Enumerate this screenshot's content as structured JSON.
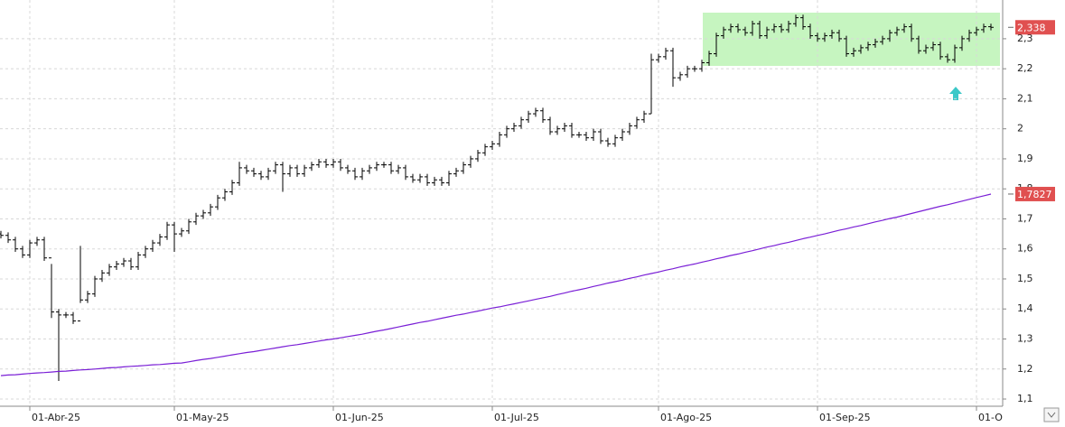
{
  "chart_data": {
    "type": "ohlc",
    "categories": [
      null,
      null,
      null,
      null,
      "01-Abr-25",
      null,
      null,
      null,
      null,
      null,
      null,
      null,
      null,
      null,
      null,
      null,
      null,
      null,
      null,
      null,
      null,
      null,
      null,
      null,
      "01-May-25",
      null,
      null,
      null,
      null,
      null,
      null,
      null,
      null,
      null,
      null,
      null,
      null,
      null,
      null,
      null,
      null,
      null,
      null,
      null,
      null,
      null,
      "01-Jun-25",
      null,
      null,
      null,
      null,
      null,
      null,
      null,
      null,
      null,
      null,
      null,
      null,
      null,
      null,
      null,
      null,
      null,
      null,
      null,
      null,
      null,
      "01-Jul-25",
      null,
      null,
      null,
      null,
      null,
      null,
      null,
      null,
      null,
      null,
      null,
      null,
      null,
      null,
      null,
      null,
      null,
      null,
      null,
      null,
      null,
      null,
      "01-Ago-25",
      null,
      null,
      null,
      null,
      null,
      null,
      null,
      null,
      null,
      null,
      null,
      null,
      null,
      null,
      null,
      null,
      null,
      null,
      null,
      null,
      null,
      "01-Sep-25",
      null,
      null,
      null,
      null,
      null,
      null,
      null,
      null,
      null,
      null,
      null,
      null,
      null,
      null,
      null,
      null,
      null,
      null,
      null,
      null,
      null,
      "01-O",
      null,
      null
    ],
    "ohlc": {
      "color": "#000000",
      "open": [
        1.65,
        1.645,
        1.63,
        1.6,
        1.58,
        1.62,
        1.63,
        1.57,
        1.39,
        1.38,
        1.38,
        1.36,
        1.43,
        1.45,
        1.5,
        1.52,
        1.54,
        1.55,
        1.56,
        1.54,
        1.58,
        1.6,
        1.62,
        1.64,
        1.68,
        1.65,
        1.66,
        1.69,
        1.71,
        1.72,
        1.74,
        1.77,
        1.79,
        1.82,
        1.87,
        1.86,
        1.85,
        1.84,
        1.86,
        1.88,
        1.85,
        1.87,
        1.85,
        1.87,
        1.88,
        1.89,
        1.88,
        1.89,
        1.87,
        1.86,
        1.84,
        1.86,
        1.87,
        1.88,
        1.88,
        1.86,
        1.87,
        1.84,
        1.83,
        1.84,
        1.82,
        1.83,
        1.82,
        1.85,
        1.86,
        1.88,
        1.9,
        1.92,
        1.94,
        1.95,
        1.98,
        2.0,
        2.01,
        2.03,
        2.05,
        2.06,
        2.03,
        1.99,
        2.0,
        2.01,
        1.98,
        1.98,
        1.97,
        1.99,
        1.96,
        1.95,
        1.97,
        1.99,
        2.01,
        2.03,
        2.05,
        2.23,
        2.24,
        2.26,
        2.17,
        2.18,
        2.2,
        2.2,
        2.22,
        2.25,
        2.31,
        2.33,
        2.34,
        2.33,
        2.32,
        2.35,
        2.31,
        2.33,
        2.34,
        2.33,
        2.35,
        2.37,
        2.34,
        2.31,
        2.3,
        2.31,
        2.32,
        2.3,
        2.25,
        2.26,
        2.27,
        2.28,
        2.29,
        2.3,
        2.32,
        2.33,
        2.34,
        2.3,
        2.26,
        2.27,
        2.28,
        2.24,
        2.23,
        2.27,
        2.3,
        2.32,
        2.33,
        2.34
      ],
      "high": [
        1.66,
        1.655,
        1.64,
        1.61,
        1.63,
        1.64,
        1.64,
        1.55,
        1.4,
        1.39,
        1.39,
        1.61,
        1.46,
        1.51,
        1.53,
        1.55,
        1.56,
        1.57,
        1.57,
        1.59,
        1.61,
        1.63,
        1.65,
        1.69,
        1.69,
        1.67,
        1.7,
        1.72,
        1.73,
        1.75,
        1.78,
        1.8,
        1.83,
        1.89,
        1.88,
        1.87,
        1.86,
        1.87,
        1.89,
        1.89,
        1.88,
        1.88,
        1.88,
        1.89,
        1.9,
        1.9,
        1.9,
        1.9,
        1.88,
        1.87,
        1.87,
        1.88,
        1.89,
        1.89,
        1.89,
        1.88,
        1.88,
        1.85,
        1.85,
        1.85,
        1.84,
        1.84,
        1.86,
        1.87,
        1.89,
        1.91,
        1.93,
        1.95,
        1.96,
        1.99,
        2.01,
        2.02,
        2.04,
        2.06,
        2.07,
        2.07,
        2.04,
        2.01,
        2.02,
        2.02,
        1.99,
        1.99,
        2.0,
        2.0,
        1.97,
        1.98,
        2.0,
        2.02,
        2.04,
        2.06,
        2.25,
        2.25,
        2.27,
        2.27,
        2.19,
        2.21,
        2.21,
        2.23,
        2.26,
        2.32,
        2.34,
        2.35,
        2.35,
        2.34,
        2.36,
        2.36,
        2.34,
        2.35,
        2.35,
        2.36,
        2.38,
        2.38,
        2.35,
        2.32,
        2.32,
        2.33,
        2.33,
        2.31,
        2.27,
        2.28,
        2.29,
        2.3,
        2.31,
        2.33,
        2.34,
        2.35,
        2.35,
        2.31,
        2.28,
        2.29,
        2.29,
        2.25,
        2.28,
        2.31,
        2.33,
        2.34,
        2.35,
        2.35
      ],
      "low": [
        1.635,
        1.62,
        1.59,
        1.57,
        1.57,
        1.61,
        1.56,
        1.37,
        1.16,
        1.37,
        1.35,
        1.42,
        1.42,
        1.44,
        1.49,
        1.51,
        1.53,
        1.54,
        1.53,
        1.53,
        1.57,
        1.59,
        1.61,
        1.63,
        1.59,
        1.64,
        1.65,
        1.68,
        1.7,
        1.71,
        1.73,
        1.76,
        1.78,
        1.81,
        1.85,
        1.84,
        1.83,
        1.83,
        1.85,
        1.79,
        1.84,
        1.84,
        1.84,
        1.86,
        1.87,
        1.87,
        1.87,
        1.86,
        1.85,
        1.83,
        1.83,
        1.85,
        1.86,
        1.87,
        1.85,
        1.85,
        1.83,
        1.82,
        1.82,
        1.81,
        1.81,
        1.81,
        1.81,
        1.84,
        1.85,
        1.87,
        1.89,
        1.91,
        1.93,
        1.94,
        1.97,
        1.99,
        2.0,
        2.02,
        2.04,
        2.02,
        1.98,
        1.98,
        1.99,
        1.97,
        1.97,
        1.96,
        1.96,
        1.95,
        1.94,
        1.94,
        1.96,
        1.98,
        2.0,
        2.02,
        2.05,
        2.22,
        2.23,
        2.14,
        2.16,
        2.17,
        2.19,
        2.19,
        2.21,
        2.24,
        2.3,
        2.32,
        2.32,
        2.31,
        2.31,
        2.3,
        2.3,
        2.32,
        2.32,
        2.32,
        2.34,
        2.33,
        2.3,
        2.29,
        2.29,
        2.3,
        2.29,
        2.24,
        2.24,
        2.25,
        2.26,
        2.27,
        2.28,
        2.29,
        2.31,
        2.32,
        2.29,
        2.25,
        2.25,
        2.26,
        2.23,
        2.22,
        2.22,
        2.26,
        2.29,
        2.31,
        2.32,
        2.328
      ],
      "close": [
        1.645,
        1.63,
        1.6,
        1.58,
        1.62,
        1.63,
        1.57,
        1.39,
        1.38,
        1.38,
        1.36,
        1.43,
        1.45,
        1.5,
        1.52,
        1.54,
        1.55,
        1.56,
        1.54,
        1.58,
        1.6,
        1.62,
        1.64,
        1.68,
        1.65,
        1.66,
        1.69,
        1.71,
        1.72,
        1.74,
        1.77,
        1.79,
        1.82,
        1.87,
        1.86,
        1.85,
        1.84,
        1.86,
        1.88,
        1.85,
        1.87,
        1.85,
        1.87,
        1.88,
        1.89,
        1.88,
        1.89,
        1.87,
        1.86,
        1.84,
        1.86,
        1.87,
        1.88,
        1.88,
        1.86,
        1.87,
        1.84,
        1.83,
        1.84,
        1.82,
        1.83,
        1.82,
        1.85,
        1.86,
        1.88,
        1.9,
        1.92,
        1.94,
        1.95,
        1.98,
        2.0,
        2.01,
        2.03,
        2.05,
        2.06,
        2.03,
        1.99,
        2.0,
        2.01,
        1.98,
        1.98,
        1.97,
        1.99,
        1.96,
        1.95,
        1.97,
        1.99,
        2.01,
        2.03,
        2.05,
        2.23,
        2.24,
        2.26,
        2.17,
        2.18,
        2.2,
        2.2,
        2.22,
        2.25,
        2.31,
        2.33,
        2.34,
        2.33,
        2.32,
        2.35,
        2.31,
        2.33,
        2.34,
        2.33,
        2.35,
        2.37,
        2.34,
        2.31,
        2.3,
        2.31,
        2.32,
        2.3,
        2.25,
        2.26,
        2.27,
        2.28,
        2.29,
        2.3,
        2.32,
        2.33,
        2.34,
        2.3,
        2.26,
        2.27,
        2.28,
        2.24,
        2.23,
        2.27,
        2.3,
        2.32,
        2.33,
        2.34,
        2.338
      ]
    },
    "moving_average": {
      "color": "#7a1fd6",
      "values": [
        1.178,
        1.18,
        1.181,
        1.183,
        1.185,
        1.187,
        1.188,
        1.19,
        1.192,
        1.193,
        1.195,
        1.197,
        1.198,
        1.2,
        1.202,
        1.204,
        1.205,
        1.207,
        1.209,
        1.21,
        1.212,
        1.214,
        1.215,
        1.217,
        1.219,
        1.22,
        1.224,
        1.228,
        1.232,
        1.235,
        1.239,
        1.243,
        1.247,
        1.251,
        1.255,
        1.258,
        1.262,
        1.266,
        1.27,
        1.274,
        1.278,
        1.281,
        1.285,
        1.289,
        1.293,
        1.297,
        1.3,
        1.304,
        1.308,
        1.312,
        1.316,
        1.321,
        1.326,
        1.33,
        1.335,
        1.34,
        1.345,
        1.35,
        1.355,
        1.359,
        1.364,
        1.369,
        1.374,
        1.379,
        1.383,
        1.388,
        1.393,
        1.398,
        1.403,
        1.407,
        1.412,
        1.417,
        1.422,
        1.427,
        1.432,
        1.437,
        1.442,
        1.448,
        1.453,
        1.459,
        1.464,
        1.469,
        1.475,
        1.48,
        1.486,
        1.491,
        1.496,
        1.502,
        1.507,
        1.513,
        1.518,
        1.523,
        1.529,
        1.534,
        1.54,
        1.545,
        1.55,
        1.556,
        1.561,
        1.567,
        1.572,
        1.578,
        1.583,
        1.589,
        1.594,
        1.6,
        1.606,
        1.611,
        1.617,
        1.622,
        1.628,
        1.634,
        1.639,
        1.645,
        1.65,
        1.656,
        1.662,
        1.667,
        1.673,
        1.678,
        1.684,
        1.69,
        1.695,
        1.701,
        1.706,
        1.712,
        1.718,
        1.724,
        1.73,
        1.736,
        1.742,
        1.747,
        1.753,
        1.759,
        1.765,
        1.771,
        1.777,
        1.7827
      ]
    },
    "last_labels": [
      {
        "value": 2.338,
        "label": "2,338",
        "color": "#e05050"
      },
      {
        "value": 1.7827,
        "label": "1,7827",
        "color": "#e05050"
      }
    ],
    "ylim": [
      1.076,
      2.429
    ],
    "yticks": [
      {
        "value": 1.1,
        "label": "1,1"
      },
      {
        "value": 1.2,
        "label": "1,2"
      },
      {
        "value": 1.3,
        "label": "1,3"
      },
      {
        "value": 1.4,
        "label": "1,4"
      },
      {
        "value": 1.5,
        "label": "1,5"
      },
      {
        "value": 1.6,
        "label": "1,6"
      },
      {
        "value": 1.7,
        "label": "1,7"
      },
      {
        "value": 1.8,
        "label": "1,8"
      },
      {
        "value": 1.9,
        "label": "1,9"
      },
      {
        "value": 2,
        "label": "2"
      },
      {
        "value": 2.1,
        "label": "2,1"
      },
      {
        "value": 2.2,
        "label": "2,2"
      },
      {
        "value": 2.3,
        "label": "2,3"
      }
    ],
    "grid": true
  }
}
